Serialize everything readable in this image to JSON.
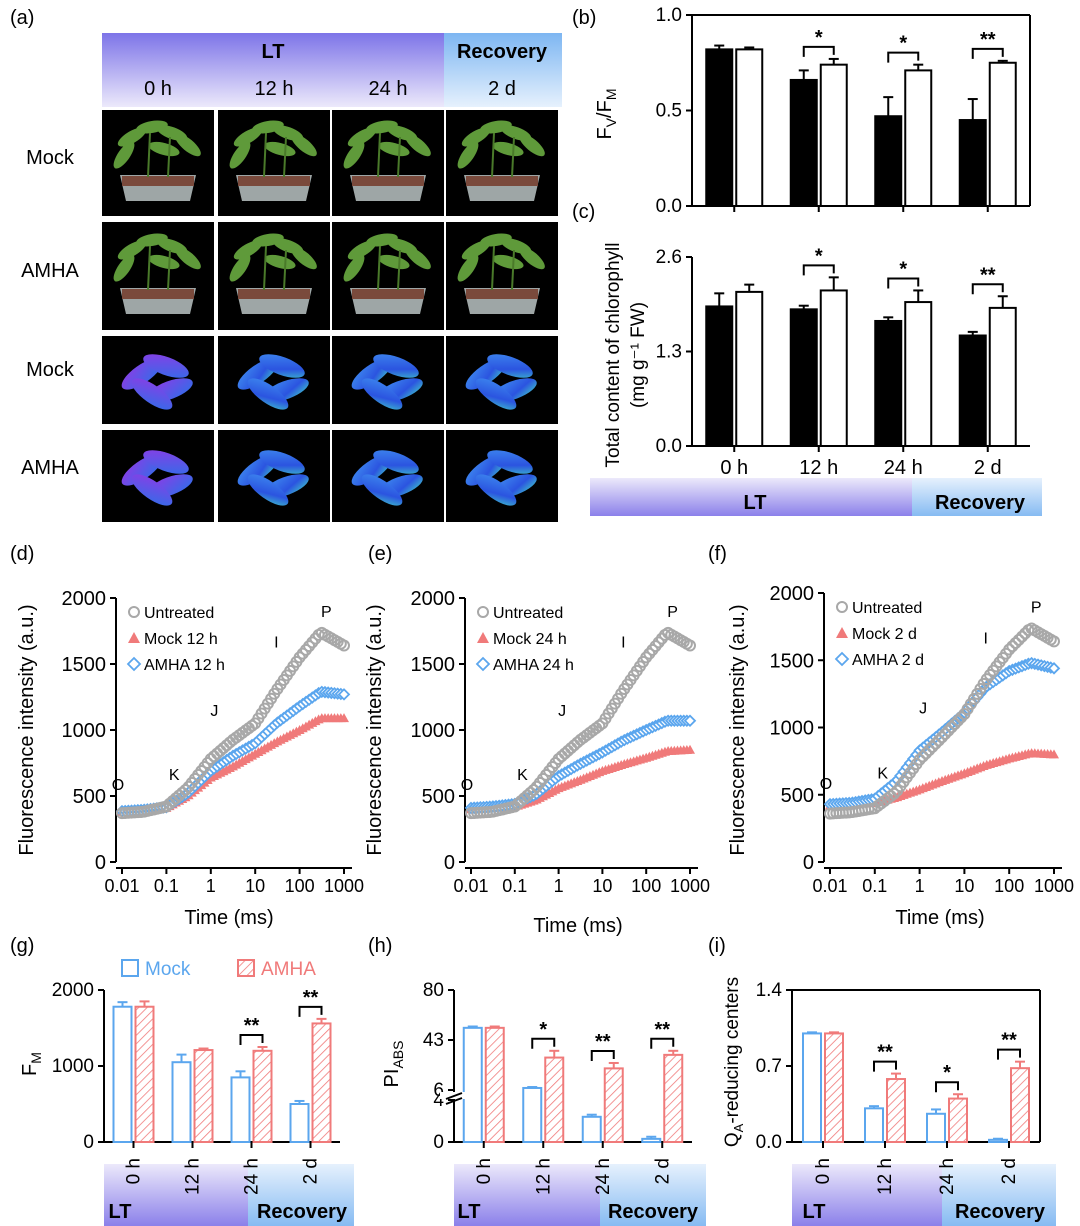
{
  "panel_labels": {
    "a": "(a)",
    "b": "(b)",
    "c": "(c)",
    "d": "(d)",
    "e": "(e)",
    "f": "(f)",
    "g": "(g)",
    "h": "(h)",
    "i": "(i)"
  },
  "photo_grid": {
    "header_lt": "LT",
    "header_recovery": "Recovery",
    "columns": [
      "0 h",
      "12 h",
      "24 h",
      "2 d"
    ],
    "rows": [
      "Mock",
      "AMHA",
      "Mock",
      "AMHA"
    ]
  },
  "colors": {
    "mock": "#5ba6ee",
    "amha": "#f07a7a",
    "untreated": "#a8a8a8",
    "lt": "#8b85ea",
    "recovery": "#8ec0f4"
  },
  "chart_data": [
    {
      "id": "b",
      "type": "bar",
      "ylabel_main": "F",
      "ylabel_sub1": "V",
      "ylabel_mid": "/F",
      "ylabel_sub2": "M",
      "ylim": [
        0,
        1.0
      ],
      "yticks": [
        "0.0",
        "0.5",
        "1.0"
      ],
      "series": [
        {
          "name": "Mock",
          "values": [
            0.82,
            0.66,
            0.47,
            0.45
          ],
          "errors": [
            0.02,
            0.05,
            0.1,
            0.11
          ]
        },
        {
          "name": "AMHA",
          "values": [
            0.82,
            0.74,
            0.71,
            0.75
          ],
          "errors": [
            0.01,
            0.03,
            0.03,
            0.01
          ]
        }
      ],
      "significance": [
        "",
        "*",
        "*",
        "**"
      ]
    },
    {
      "id": "c",
      "type": "bar",
      "ylabel_line1": "Total content of chlorophyll",
      "ylabel_line2": "(mg g⁻¹ FW)",
      "ylim": [
        0,
        2.6
      ],
      "yticks": [
        "0.0",
        "1.3",
        "2.6"
      ],
      "categories": [
        "0 h",
        "12 h",
        "24 h",
        "2 d"
      ],
      "x_band_lt": "LT",
      "x_band_recovery": "Recovery",
      "series": [
        {
          "name": "Mock",
          "values": [
            1.92,
            1.88,
            1.72,
            1.52
          ],
          "errors": [
            0.18,
            0.05,
            0.05,
            0.05
          ]
        },
        {
          "name": "AMHA",
          "values": [
            2.12,
            2.14,
            1.98,
            1.9
          ],
          "errors": [
            0.1,
            0.18,
            0.16,
            0.16
          ]
        }
      ],
      "significance": [
        "",
        "*",
        "*",
        "**"
      ]
    },
    {
      "id": "d",
      "type": "scatter",
      "xlabel": "Time (ms)",
      "ylabel": "Fluorescence intensity (a.u.)",
      "xlim": [
        0.01,
        1000
      ],
      "ylim": [
        0,
        2000
      ],
      "xticks": [
        "0.01",
        "0.1",
        "1",
        "10",
        "100",
        "1000"
      ],
      "yticks": [
        "0",
        "500",
        "1000",
        "1500",
        "2000"
      ],
      "legend": [
        "Untreated",
        "Mock 12 h",
        "AMHA 12 h"
      ],
      "ojip_labels": [
        "O",
        "K",
        "J",
        "I",
        "P"
      ],
      "series": [
        {
          "name": "Untreated",
          "x": [
            0.01,
            0.03,
            0.1,
            0.3,
            1,
            3,
            10,
            30,
            100,
            300,
            1000
          ],
          "y": [
            370,
            380,
            420,
            560,
            780,
            920,
            1050,
            1300,
            1550,
            1740,
            1640
          ]
        },
        {
          "name": "Mock 12 h",
          "x": [
            0.01,
            0.03,
            0.1,
            0.3,
            1,
            3,
            10,
            30,
            100,
            300,
            1000
          ],
          "y": [
            380,
            390,
            410,
            500,
            640,
            720,
            820,
            910,
            1000,
            1090,
            1090
          ]
        },
        {
          "name": "AMHA 12 h",
          "x": [
            0.01,
            0.03,
            0.1,
            0.3,
            1,
            3,
            10,
            30,
            100,
            300,
            1000
          ],
          "y": [
            385,
            395,
            415,
            520,
            690,
            800,
            900,
            1050,
            1180,
            1290,
            1270
          ]
        }
      ]
    },
    {
      "id": "e",
      "type": "scatter",
      "xlabel": "Time (ms)",
      "ylabel": "Fluorescence intensity (a.u.)",
      "xlim": [
        0.01,
        1000
      ],
      "ylim": [
        0,
        2000
      ],
      "xticks": [
        "0.01",
        "0.1",
        "1",
        "10",
        "100",
        "1000"
      ],
      "yticks": [
        "0",
        "500",
        "1000",
        "1500",
        "2000"
      ],
      "legend": [
        "Untreated",
        "Mock 24 h",
        "AMHA 24 h"
      ],
      "ojip_labels": [
        "O",
        "K",
        "J",
        "I",
        "P"
      ],
      "series": [
        {
          "name": "Untreated",
          "x": [
            0.01,
            0.03,
            0.1,
            0.3,
            1,
            3,
            10,
            30,
            100,
            300,
            1000
          ],
          "y": [
            370,
            380,
            420,
            560,
            780,
            920,
            1050,
            1300,
            1550,
            1740,
            1640
          ]
        },
        {
          "name": "Mock 24 h",
          "x": [
            0.01,
            0.03,
            0.1,
            0.3,
            1,
            3,
            10,
            30,
            100,
            300,
            1000
          ],
          "y": [
            400,
            410,
            420,
            470,
            560,
            620,
            690,
            740,
            790,
            840,
            850
          ]
        },
        {
          "name": "AMHA 24 h",
          "x": [
            0.01,
            0.03,
            0.1,
            0.3,
            1,
            3,
            10,
            30,
            100,
            300,
            1000
          ],
          "y": [
            410,
            420,
            440,
            510,
            650,
            740,
            830,
            920,
            1000,
            1070,
            1070
          ]
        }
      ]
    },
    {
      "id": "f",
      "type": "scatter",
      "xlabel": "Time (ms)",
      "ylabel": "Fluorescence intensity (a.u.)",
      "xlim": [
        0.01,
        1000
      ],
      "ylim": [
        0,
        2000
      ],
      "xticks": [
        "0.01",
        "0.1",
        "1",
        "10",
        "100",
        "1000"
      ],
      "yticks": [
        "0",
        "500",
        "1000",
        "1500",
        "2000"
      ],
      "legend": [
        "Untreated",
        "Mock 2 d",
        "AMHA 2 d"
      ],
      "ojip_labels": [
        "O",
        "K",
        "J",
        "I",
        "P"
      ],
      "series": [
        {
          "name": "Untreated",
          "x": [
            0.01,
            0.03,
            0.1,
            0.3,
            1,
            3,
            10,
            30,
            100,
            300,
            1000
          ],
          "y": [
            360,
            370,
            400,
            520,
            760,
            920,
            1100,
            1350,
            1580,
            1740,
            1640
          ]
        },
        {
          "name": "Mock 2 d",
          "x": [
            0.01,
            0.03,
            0.1,
            0.3,
            1,
            3,
            10,
            30,
            100,
            300,
            1000
          ],
          "y": [
            420,
            430,
            440,
            480,
            540,
            600,
            660,
            720,
            770,
            810,
            800
          ]
        },
        {
          "name": "AMHA 2 d",
          "x": [
            0.01,
            0.03,
            0.1,
            0.3,
            1,
            3,
            10,
            30,
            100,
            300,
            1000
          ],
          "y": [
            430,
            440,
            470,
            600,
            830,
            960,
            1110,
            1300,
            1420,
            1480,
            1440
          ]
        }
      ]
    },
    {
      "id": "g",
      "type": "bar",
      "ylabel_main": "F",
      "ylabel_sub": "M",
      "ylim": [
        0,
        2000
      ],
      "yticks": [
        "0",
        "1000",
        "2000"
      ],
      "categories": [
        "0 h",
        "12 h",
        "24 h",
        "2 d"
      ],
      "legend": [
        "Mock",
        "AMHA"
      ],
      "x_band_lt": "LT",
      "x_band_recovery": "Recovery",
      "series": [
        {
          "name": "Mock",
          "values": [
            1780,
            1050,
            850,
            500
          ],
          "errors": [
            60,
            100,
            80,
            40
          ]
        },
        {
          "name": "AMHA",
          "values": [
            1780,
            1210,
            1200,
            1560
          ],
          "errors": [
            70,
            20,
            50,
            60
          ]
        }
      ],
      "significance": [
        "",
        "",
        "**",
        "**"
      ]
    },
    {
      "id": "h",
      "type": "bar",
      "ylabel_main": "PI",
      "ylabel_sub": "ABS",
      "yticks": [
        "0",
        "4",
        "6",
        "43",
        "80"
      ],
      "categories": [
        "0 h",
        "12 h",
        "24 h",
        "2 d"
      ],
      "x_band_lt": "LT",
      "x_band_recovery": "Recovery",
      "series": [
        {
          "name": "Mock",
          "values": [
            52,
            7.5,
            2.4,
            0.3
          ],
          "errors": [
            1,
            0.7,
            0.2,
            0.2
          ]
        },
        {
          "name": "AMHA",
          "values": [
            52,
            30,
            22,
            32
          ],
          "errors": [
            1,
            5,
            4,
            3
          ]
        }
      ],
      "significance": [
        "",
        "*",
        "**",
        "**"
      ]
    },
    {
      "id": "i",
      "type": "bar",
      "ylabel_main": "Q",
      "ylabel_sub": "A",
      "ylabel_rest": "-reducing centers",
      "ylim": [
        0,
        1.4
      ],
      "yticks": [
        "0.0",
        "0.7",
        "1.4"
      ],
      "categories": [
        "0 h",
        "12 h",
        "24 h",
        "2 d"
      ],
      "x_band_lt": "LT",
      "x_band_recovery": "Recovery",
      "series": [
        {
          "name": "Mock",
          "values": [
            1.0,
            0.31,
            0.26,
            0.02
          ],
          "errors": [
            0.01,
            0.02,
            0.04,
            0.01
          ]
        },
        {
          "name": "AMHA",
          "values": [
            1.0,
            0.58,
            0.4,
            0.68
          ],
          "errors": [
            0.01,
            0.05,
            0.04,
            0.06
          ]
        }
      ],
      "significance": [
        "",
        "**",
        "*",
        "**"
      ]
    }
  ]
}
